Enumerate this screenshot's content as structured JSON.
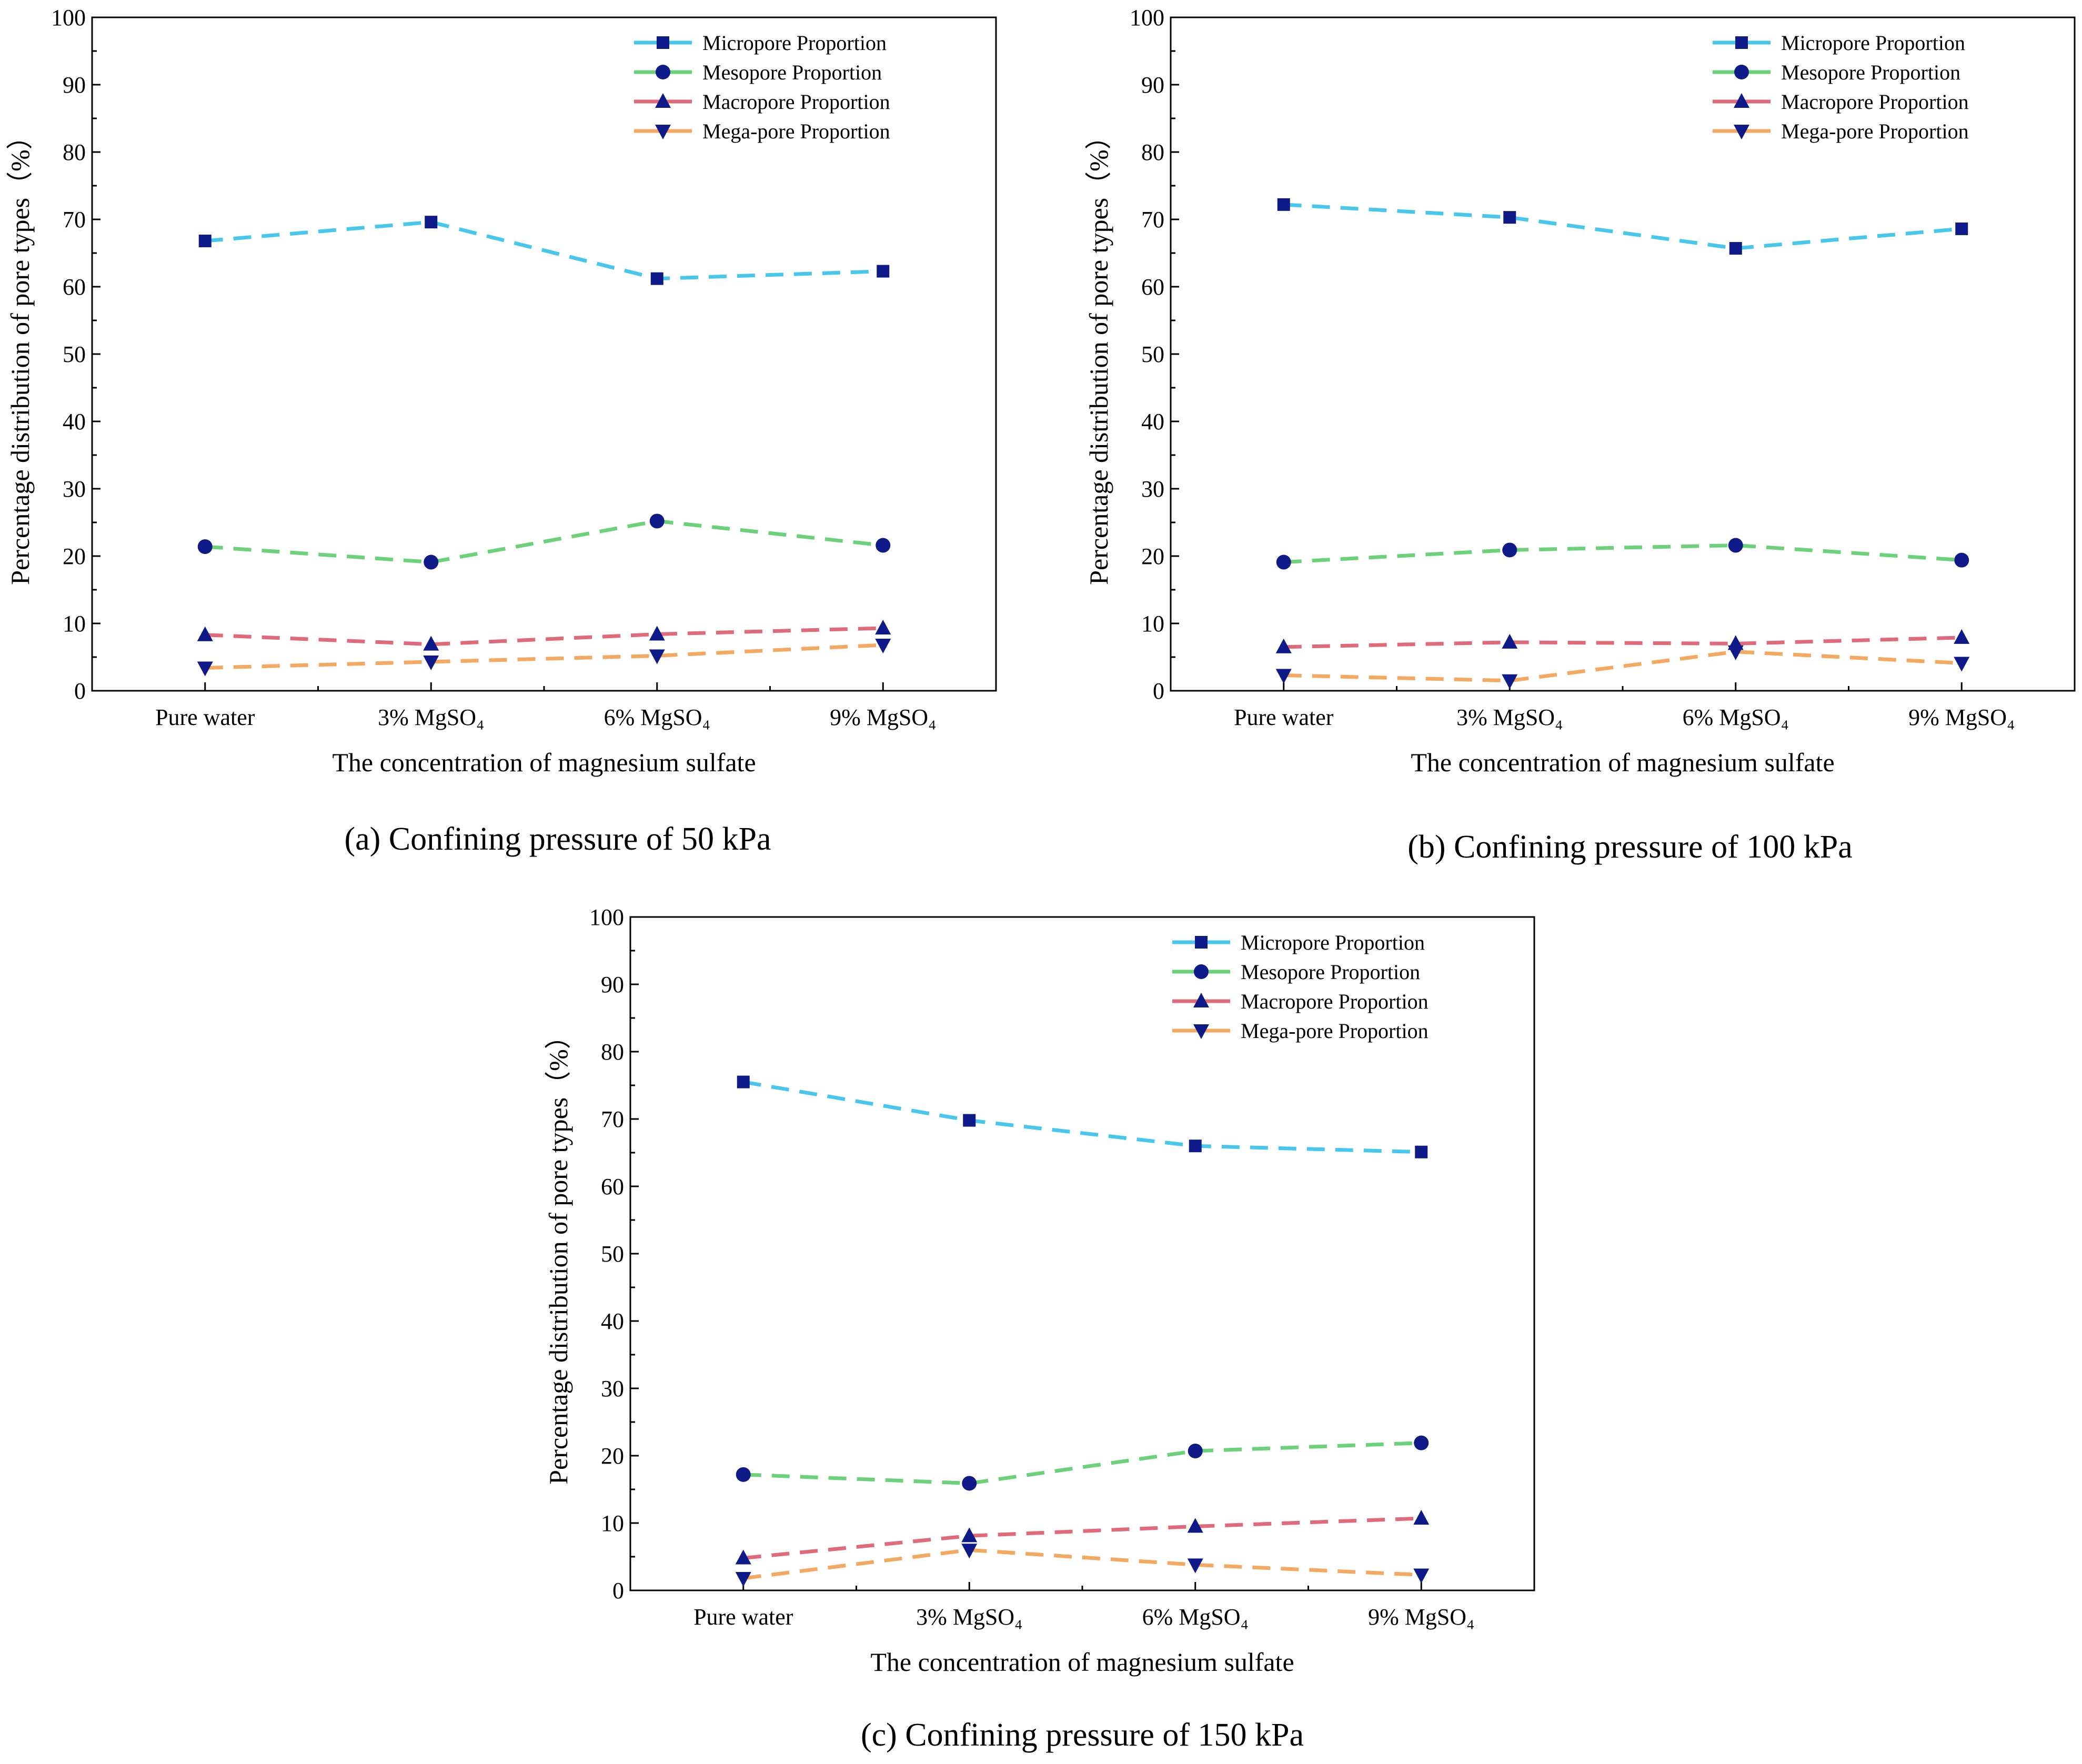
{
  "series_names": [
    "Micropore Proportion",
    "Mesopore  Proportion",
    "Macropore Proportion",
    "Mega-pore Proportion"
  ],
  "series_colors": [
    "#47c6ee",
    "#6bd27a",
    "#e0697a",
    "#f5a860"
  ],
  "marker_color": "#0d1a87",
  "markers": [
    "square",
    "circle",
    "triangle-up",
    "triangle-down"
  ],
  "chart_data": [
    {
      "type": "line",
      "caption": "(a) Confining pressure of 50 kPa",
      "xlabel": "The concentration of magnesium sulfate",
      "ylabel": "Percentage distribution of pore types（%）",
      "categories": [
        "Pure water",
        "3% MgSO₄",
        "6% MgSO₄",
        "9% MgSO₄"
      ],
      "ylim": [
        0,
        100
      ],
      "yticks": [
        0,
        10,
        20,
        30,
        40,
        50,
        60,
        70,
        80,
        90,
        100
      ],
      "legend": "top-right",
      "series": [
        {
          "name": "Micropore Proportion",
          "values": [
            66.8,
            69.6,
            61.2,
            62.3
          ]
        },
        {
          "name": "Mesopore  Proportion",
          "values": [
            21.4,
            19.1,
            25.2,
            21.6
          ]
        },
        {
          "name": "Macropore Proportion",
          "values": [
            8.3,
            6.9,
            8.4,
            9.3
          ]
        },
        {
          "name": "Mega-pore Proportion",
          "values": [
            3.4,
            4.3,
            5.2,
            6.8
          ]
        }
      ]
    },
    {
      "type": "line",
      "caption": "(b) Confining pressure of 100 kPa",
      "xlabel": "The concentration of magnesium sulfate",
      "ylabel": "Percentage distribution of pore types（%）",
      "categories": [
        "Pure water",
        "3% MgSO₄",
        "6% MgSO₄",
        "9% MgSO₄"
      ],
      "ylim": [
        0,
        100
      ],
      "yticks": [
        0,
        10,
        20,
        30,
        40,
        50,
        60,
        70,
        80,
        90,
        100
      ],
      "legend": "top-right",
      "series": [
        {
          "name": "Micropore Proportion",
          "values": [
            72.2,
            70.3,
            65.7,
            68.6
          ]
        },
        {
          "name": "Mesopore  Proportion",
          "values": [
            19.1,
            20.9,
            21.6,
            19.4
          ]
        },
        {
          "name": "Macropore Proportion",
          "values": [
            6.5,
            7.2,
            7.0,
            7.9
          ]
        },
        {
          "name": "Mega-pore Proportion",
          "values": [
            2.3,
            1.5,
            5.8,
            4.1
          ]
        }
      ]
    },
    {
      "type": "line",
      "caption": "(c) Confining pressure of 150 kPa",
      "xlabel": "The concentration of magnesium sulfate",
      "ylabel": "Percentage distribution of pore types（%）",
      "categories": [
        "Pure water",
        "3% MgSO₄",
        "6% MgSO₄",
        "9% MgSO₄"
      ],
      "ylim": [
        0,
        100
      ],
      "yticks": [
        0,
        10,
        20,
        30,
        40,
        50,
        60,
        70,
        80,
        90,
        100
      ],
      "legend": "top-right",
      "series": [
        {
          "name": "Micropore Proportion",
          "values": [
            75.5,
            69.8,
            66.0,
            65.1
          ]
        },
        {
          "name": "Mesopore  Proportion",
          "values": [
            17.2,
            15.9,
            20.7,
            21.9
          ]
        },
        {
          "name": "Macropore Proportion",
          "values": [
            4.8,
            8.1,
            9.5,
            10.7
          ]
        },
        {
          "name": "Mega-pore Proportion",
          "values": [
            1.8,
            6.0,
            3.8,
            2.3
          ]
        }
      ]
    }
  ]
}
